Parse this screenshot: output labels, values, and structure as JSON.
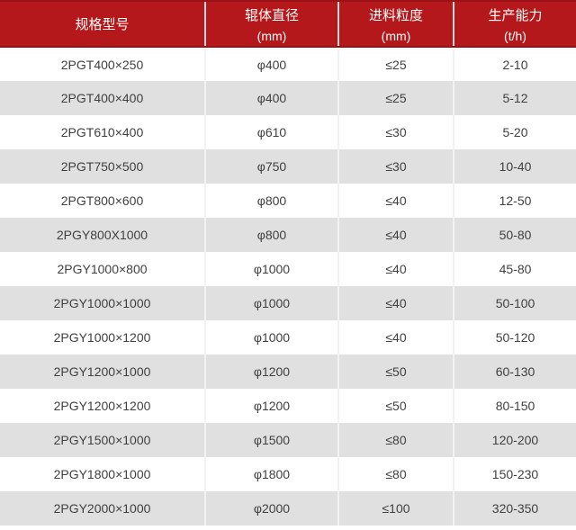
{
  "colors": {
    "header_bg": "#b5181a",
    "header_rule": "#9a1215",
    "header_text": "#ffffff",
    "header_divider": "#eadcdc",
    "row_bg": "#ffffff",
    "row_alt_bg": "#e0e0e0",
    "body_divider": "#f2f2f2",
    "body_text": "#404040"
  },
  "table": {
    "headers": [
      {
        "line1": "规格型号",
        "line2": ""
      },
      {
        "line1": "辊体直径",
        "line2": "(mm)"
      },
      {
        "line1": "进料粒度",
        "line2": "(mm)"
      },
      {
        "line1": "生产能力",
        "line2": "(t/h)"
      }
    ],
    "rows": [
      [
        "2PGT400×250",
        "φ400",
        "≤25",
        "2-10"
      ],
      [
        "2PGT400×400",
        "φ400",
        "≤25",
        "5-12"
      ],
      [
        "2PGT610×400",
        "φ610",
        "≤30",
        "5-20"
      ],
      [
        "2PGT750×500",
        "φ750",
        "≤30",
        "10-40"
      ],
      [
        "2PGT800×600",
        "φ800",
        "≤40",
        "12-50"
      ],
      [
        "2PGY800X1000",
        "φ800",
        "≤40",
        "50-80"
      ],
      [
        "2PGY1000×800",
        "φ1000",
        "≤40",
        "45-80"
      ],
      [
        "2PGY1000×1000",
        "φ1000",
        "≤40",
        "50-100"
      ],
      [
        "2PGY1000×1200",
        "φ1000",
        "≤40",
        "50-120"
      ],
      [
        "2PGY1200×1000",
        "φ1200",
        "≤50",
        "60-130"
      ],
      [
        "2PGY1200×1200",
        "φ1200",
        "≤50",
        "80-150"
      ],
      [
        "2PGY1500×1000",
        "φ1500",
        "≤80",
        "120-200"
      ],
      [
        "2PGY1800×1000",
        "φ1800",
        "≤80",
        "150-230"
      ],
      [
        "2PGY2000×1000",
        "φ2000",
        "≤100",
        "320-350"
      ]
    ]
  },
  "chart_data": {
    "type": "table",
    "title": "",
    "columns": [
      "规格型号",
      "辊体直径 (mm)",
      "进料粒度 (mm)",
      "生产能力 (t/h)"
    ],
    "rows": [
      [
        "2PGT400×250",
        "φ400",
        "≤25",
        "2-10"
      ],
      [
        "2PGT400×400",
        "φ400",
        "≤25",
        "5-12"
      ],
      [
        "2PGT610×400",
        "φ610",
        "≤30",
        "5-20"
      ],
      [
        "2PGT750×500",
        "φ750",
        "≤30",
        "10-40"
      ],
      [
        "2PGT800×600",
        "φ800",
        "≤40",
        "12-50"
      ],
      [
        "2PGY800X1000",
        "φ800",
        "≤40",
        "50-80"
      ],
      [
        "2PGY1000×800",
        "φ1000",
        "≤40",
        "45-80"
      ],
      [
        "2PGY1000×1000",
        "φ1000",
        "≤40",
        "50-100"
      ],
      [
        "2PGY1000×1200",
        "φ1000",
        "≤40",
        "50-120"
      ],
      [
        "2PGY1200×1000",
        "φ1200",
        "≤50",
        "60-130"
      ],
      [
        "2PGY1200×1200",
        "φ1200",
        "≤50",
        "80-150"
      ],
      [
        "2PGY1500×1000",
        "φ1500",
        "≤80",
        "120-200"
      ],
      [
        "2PGY1800×1000",
        "φ1800",
        "≤80",
        "150-230"
      ],
      [
        "2PGY2000×1000",
        "φ2000",
        "≤100",
        "320-350"
      ]
    ]
  }
}
